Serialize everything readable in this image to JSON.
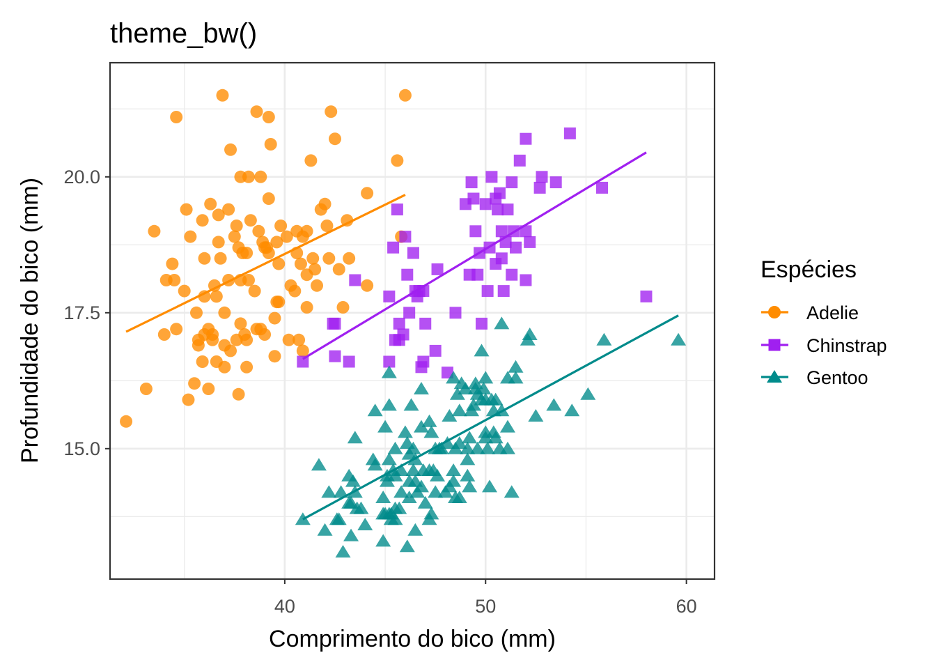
{
  "chart_data": {
    "type": "scatter",
    "title": "theme_bw()",
    "xlabel": "Comprimento do bico (mm)",
    "ylabel": "Profundidade do bico (mm)",
    "xlim": [
      31.3,
      61.4
    ],
    "ylim": [
      12.6,
      22.1
    ],
    "x_ticks": [
      40,
      50,
      60
    ],
    "x_tick_labels": [
      "40",
      "50",
      "60"
    ],
    "x_minor_ticks": [
      35,
      45,
      55
    ],
    "y_ticks": [
      15.0,
      17.5,
      20.0
    ],
    "y_tick_labels": [
      "15.0",
      "17.5",
      "20.0"
    ],
    "y_minor_ticks": [
      13.75,
      16.25,
      18.75,
      21.25
    ],
    "grid": true,
    "legend": {
      "title": "Espécies",
      "position": "right",
      "entries": [
        "Adelie",
        "Chinstrap",
        "Gentoo"
      ]
    },
    "series": [
      {
        "name": "Adelie",
        "color": "#ff8c00",
        "marker": "circle",
        "trend": [
          [
            32.1,
            17.15
          ],
          [
            46.0,
            19.67
          ]
        ],
        "points": [
          [
            32.1,
            15.5
          ],
          [
            33.1,
            16.1
          ],
          [
            33.5,
            19.0
          ],
          [
            34.0,
            17.1
          ],
          [
            34.1,
            18.1
          ],
          [
            34.4,
            18.4
          ],
          [
            34.5,
            18.1
          ],
          [
            34.6,
            17.2
          ],
          [
            34.6,
            21.1
          ],
          [
            35.0,
            17.9
          ],
          [
            35.1,
            19.4
          ],
          [
            35.2,
            15.9
          ],
          [
            35.3,
            18.9
          ],
          [
            35.5,
            16.2
          ],
          [
            35.6,
            17.5
          ],
          [
            35.7,
            16.9
          ],
          [
            35.7,
            17.0
          ],
          [
            35.9,
            16.6
          ],
          [
            35.9,
            19.2
          ],
          [
            36.0,
            17.1
          ],
          [
            36.0,
            17.8
          ],
          [
            36.0,
            18.5
          ],
          [
            36.2,
            16.1
          ],
          [
            36.2,
            17.2
          ],
          [
            36.3,
            19.5
          ],
          [
            36.4,
            17.1
          ],
          [
            36.4,
            17.0
          ],
          [
            36.5,
            18.0
          ],
          [
            36.6,
            17.8
          ],
          [
            36.6,
            16.6
          ],
          [
            36.7,
            18.8
          ],
          [
            36.7,
            19.3
          ],
          [
            36.8,
            18.5
          ],
          [
            36.9,
            21.5
          ],
          [
            37.0,
            16.9
          ],
          [
            37.0,
            16.5
          ],
          [
            37.2,
            18.1
          ],
          [
            37.2,
            19.4
          ],
          [
            37.3,
            16.8
          ],
          [
            37.3,
            20.5
          ],
          [
            37.5,
            18.9
          ],
          [
            37.6,
            19.1
          ],
          [
            37.6,
            17.0
          ],
          [
            37.7,
            18.7
          ],
          [
            37.7,
            16.0
          ],
          [
            37.8,
            17.3
          ],
          [
            37.8,
            18.1
          ],
          [
            37.8,
            20.0
          ],
          [
            37.9,
            18.6
          ],
          [
            38.1,
            17.0
          ],
          [
            38.1,
            18.6
          ],
          [
            38.1,
            16.5
          ],
          [
            38.2,
            18.1
          ],
          [
            38.2,
            20.0
          ],
          [
            38.3,
            19.2
          ],
          [
            38.5,
            17.9
          ],
          [
            38.6,
            21.2
          ],
          [
            38.6,
            17.2
          ],
          [
            38.7,
            19.0
          ],
          [
            38.8,
            17.2
          ],
          [
            38.8,
            20.0
          ],
          [
            38.9,
            18.8
          ],
          [
            39.0,
            17.1
          ],
          [
            39.0,
            18.7
          ],
          [
            39.1,
            18.7
          ],
          [
            39.2,
            19.6
          ],
          [
            39.2,
            21.1
          ],
          [
            39.3,
            20.6
          ],
          [
            39.5,
            16.7
          ],
          [
            39.5,
            17.4
          ],
          [
            39.6,
            17.7
          ],
          [
            39.6,
            18.8
          ],
          [
            39.7,
            18.4
          ],
          [
            39.7,
            17.7
          ],
          [
            39.8,
            19.1
          ],
          [
            40.1,
            18.9
          ],
          [
            40.2,
            17.0
          ],
          [
            40.3,
            18.0
          ],
          [
            40.5,
            17.9
          ],
          [
            40.6,
            18.6
          ],
          [
            40.6,
            19.0
          ],
          [
            40.7,
            17.0
          ],
          [
            40.8,
            18.4
          ],
          [
            40.9,
            18.9
          ],
          [
            41.1,
            17.6
          ],
          [
            41.1,
            18.2
          ],
          [
            41.1,
            19.0
          ],
          [
            41.3,
            20.3
          ],
          [
            41.4,
            18.5
          ],
          [
            41.5,
            18.3
          ],
          [
            41.6,
            18.0
          ],
          [
            41.8,
            19.4
          ],
          [
            42.0,
            19.5
          ],
          [
            42.1,
            19.1
          ],
          [
            42.2,
            18.5
          ],
          [
            42.3,
            21.2
          ],
          [
            42.5,
            20.7
          ],
          [
            42.7,
            18.3
          ],
          [
            42.9,
            17.6
          ],
          [
            43.1,
            19.2
          ],
          [
            43.2,
            18.5
          ],
          [
            44.1,
            19.7
          ],
          [
            44.1,
            18.0
          ],
          [
            45.6,
            20.3
          ],
          [
            45.8,
            18.9
          ],
          [
            46.0,
            21.5
          ],
          [
            39.2,
            18.6
          ],
          [
            40.9,
            16.8
          ],
          [
            38.0,
            17.1
          ],
          [
            37.0,
            17.5
          ]
        ]
      },
      {
        "name": "Chinstrap",
        "color": "#a020f0",
        "marker": "square",
        "trend": [
          [
            40.9,
            16.65
          ],
          [
            58.0,
            20.45
          ]
        ],
        "points": [
          [
            40.9,
            16.6
          ],
          [
            42.4,
            17.3
          ],
          [
            42.5,
            16.7
          ],
          [
            42.5,
            17.3
          ],
          [
            43.2,
            16.6
          ],
          [
            43.5,
            18.1
          ],
          [
            45.2,
            17.8
          ],
          [
            45.2,
            16.6
          ],
          [
            45.4,
            18.7
          ],
          [
            45.5,
            17.0
          ],
          [
            45.6,
            19.4
          ],
          [
            45.7,
            17.3
          ],
          [
            45.7,
            17.0
          ],
          [
            46.0,
            18.9
          ],
          [
            46.1,
            18.2
          ],
          [
            46.2,
            17.5
          ],
          [
            46.4,
            18.6
          ],
          [
            46.5,
            17.9
          ],
          [
            46.6,
            17.8
          ],
          [
            46.7,
            17.9
          ],
          [
            46.8,
            16.5
          ],
          [
            46.9,
            16.6
          ],
          [
            47.0,
            17.3
          ],
          [
            47.5,
            16.8
          ],
          [
            47.6,
            18.3
          ],
          [
            48.1,
            16.4
          ],
          [
            48.5,
            17.5
          ],
          [
            49.0,
            19.5
          ],
          [
            49.2,
            18.2
          ],
          [
            49.3,
            19.9
          ],
          [
            49.5,
            19.0
          ],
          [
            49.6,
            18.2
          ],
          [
            49.7,
            18.6
          ],
          [
            49.8,
            17.3
          ],
          [
            50.0,
            19.5
          ],
          [
            50.1,
            17.9
          ],
          [
            50.2,
            18.7
          ],
          [
            50.3,
            20.0
          ],
          [
            50.5,
            18.4
          ],
          [
            50.5,
            19.6
          ],
          [
            50.6,
            19.4
          ],
          [
            50.7,
            19.7
          ],
          [
            50.8,
            18.5
          ],
          [
            50.8,
            19.0
          ],
          [
            50.9,
            17.9
          ],
          [
            51.0,
            18.8
          ],
          [
            51.3,
            19.9
          ],
          [
            51.3,
            18.2
          ],
          [
            51.4,
            19.0
          ],
          [
            51.5,
            18.7
          ],
          [
            51.7,
            20.3
          ],
          [
            52.0,
            19.0
          ],
          [
            52.0,
            18.1
          ],
          [
            52.0,
            20.7
          ],
          [
            52.2,
            18.8
          ],
          [
            52.7,
            19.8
          ],
          [
            52.8,
            20.0
          ],
          [
            53.5,
            19.9
          ],
          [
            54.2,
            20.8
          ],
          [
            55.8,
            19.8
          ],
          [
            58.0,
            17.8
          ],
          [
            45.9,
            17.1
          ],
          [
            46.9,
            17.9
          ],
          [
            49.4,
            19.6
          ],
          [
            51.1,
            19.4
          ]
        ]
      },
      {
        "name": "Gentoo",
        "color": "#008b8b",
        "marker": "triangle",
        "trend": [
          [
            40.9,
            13.7
          ],
          [
            59.6,
            17.45
          ]
        ],
        "points": [
          [
            40.9,
            13.7
          ],
          [
            41.7,
            14.7
          ],
          [
            42.0,
            13.5
          ],
          [
            42.2,
            14.2
          ],
          [
            42.6,
            13.7
          ],
          [
            42.7,
            13.7
          ],
          [
            42.8,
            14.2
          ],
          [
            42.9,
            13.1
          ],
          [
            43.2,
            14.5
          ],
          [
            43.3,
            13.4
          ],
          [
            43.3,
            14.0
          ],
          [
            43.4,
            14.4
          ],
          [
            43.5,
            14.2
          ],
          [
            43.5,
            15.2
          ],
          [
            43.6,
            13.9
          ],
          [
            43.8,
            13.9
          ],
          [
            44.0,
            13.6
          ],
          [
            44.4,
            14.8
          ],
          [
            44.5,
            14.7
          ],
          [
            44.5,
            15.7
          ],
          [
            44.9,
            13.3
          ],
          [
            44.9,
            13.8
          ],
          [
            45.0,
            15.4
          ],
          [
            45.1,
            14.4
          ],
          [
            45.1,
            14.5
          ],
          [
            45.2,
            13.8
          ],
          [
            45.2,
            14.8
          ],
          [
            45.2,
            15.8
          ],
          [
            45.2,
            16.4
          ],
          [
            45.3,
            13.7
          ],
          [
            45.3,
            13.8
          ],
          [
            45.4,
            14.6
          ],
          [
            45.5,
            13.7
          ],
          [
            45.5,
            13.9
          ],
          [
            45.5,
            14.5
          ],
          [
            45.5,
            15.0
          ],
          [
            45.7,
            13.9
          ],
          [
            45.8,
            14.2
          ],
          [
            45.8,
            14.6
          ],
          [
            46.1,
            13.2
          ],
          [
            46.1,
            15.1
          ],
          [
            46.2,
            14.1
          ],
          [
            46.2,
            14.4
          ],
          [
            46.2,
            14.9
          ],
          [
            46.3,
            15.8
          ],
          [
            46.4,
            14.6
          ],
          [
            46.4,
            15.0
          ],
          [
            46.5,
            13.5
          ],
          [
            46.5,
            14.4
          ],
          [
            46.5,
            14.8
          ],
          [
            46.6,
            14.2
          ],
          [
            46.8,
            14.3
          ],
          [
            46.8,
            15.4
          ],
          [
            46.8,
            16.1
          ],
          [
            46.9,
            14.6
          ],
          [
            47.2,
            13.7
          ],
          [
            47.2,
            14.6
          ],
          [
            47.2,
            15.5
          ],
          [
            47.3,
            13.8
          ],
          [
            47.4,
            14.6
          ],
          [
            47.5,
            14.2
          ],
          [
            47.5,
            15.0
          ],
          [
            47.6,
            14.5
          ],
          [
            47.7,
            15.0
          ],
          [
            47.8,
            15.0
          ],
          [
            48.1,
            15.1
          ],
          [
            48.2,
            14.3
          ],
          [
            48.2,
            15.6
          ],
          [
            48.4,
            14.4
          ],
          [
            48.4,
            14.6
          ],
          [
            48.4,
            16.3
          ],
          [
            48.5,
            14.1
          ],
          [
            48.5,
            15.0
          ],
          [
            48.6,
            16.0
          ],
          [
            48.7,
            14.1
          ],
          [
            48.7,
            15.1
          ],
          [
            48.7,
            15.7
          ],
          [
            48.8,
            16.2
          ],
          [
            49.0,
            16.1
          ],
          [
            49.1,
            14.5
          ],
          [
            49.1,
            14.8
          ],
          [
            49.1,
            15.0
          ],
          [
            49.2,
            15.2
          ],
          [
            49.3,
            15.7
          ],
          [
            49.4,
            15.8
          ],
          [
            49.5,
            16.1
          ],
          [
            49.5,
            16.2
          ],
          [
            49.6,
            15.0
          ],
          [
            49.6,
            16.0
          ],
          [
            49.8,
            15.9
          ],
          [
            49.8,
            16.8
          ],
          [
            49.9,
            16.1
          ],
          [
            50.0,
            15.2
          ],
          [
            50.0,
            15.3
          ],
          [
            50.0,
            15.9
          ],
          [
            50.0,
            16.3
          ],
          [
            50.1,
            15.0
          ],
          [
            50.2,
            14.3
          ],
          [
            50.4,
            15.3
          ],
          [
            50.4,
            15.7
          ],
          [
            50.5,
            15.2
          ],
          [
            50.5,
            15.9
          ],
          [
            50.7,
            15.0
          ],
          [
            50.8,
            15.7
          ],
          [
            50.8,
            17.3
          ],
          [
            51.1,
            15.0
          ],
          [
            51.1,
            16.3
          ],
          [
            51.3,
            14.2
          ],
          [
            51.5,
            16.3
          ],
          [
            51.5,
            16.5
          ],
          [
            52.1,
            17.0
          ],
          [
            52.2,
            17.1
          ],
          [
            52.5,
            15.6
          ],
          [
            53.4,
            15.8
          ],
          [
            54.3,
            15.7
          ],
          [
            55.1,
            16.0
          ],
          [
            55.9,
            17.0
          ],
          [
            59.6,
            17.0
          ],
          [
            43.2,
            14.0
          ],
          [
            44.9,
            14.1
          ],
          [
            47.0,
            14.0
          ],
          [
            48.0,
            14.2
          ],
          [
            49.2,
            14.3
          ],
          [
            46.0,
            15.3
          ],
          [
            47.3,
            15.3
          ],
          [
            50.3,
            15.9
          ],
          [
            45.0,
            13.8
          ],
          [
            51.1,
            15.4
          ]
        ]
      }
    ]
  }
}
